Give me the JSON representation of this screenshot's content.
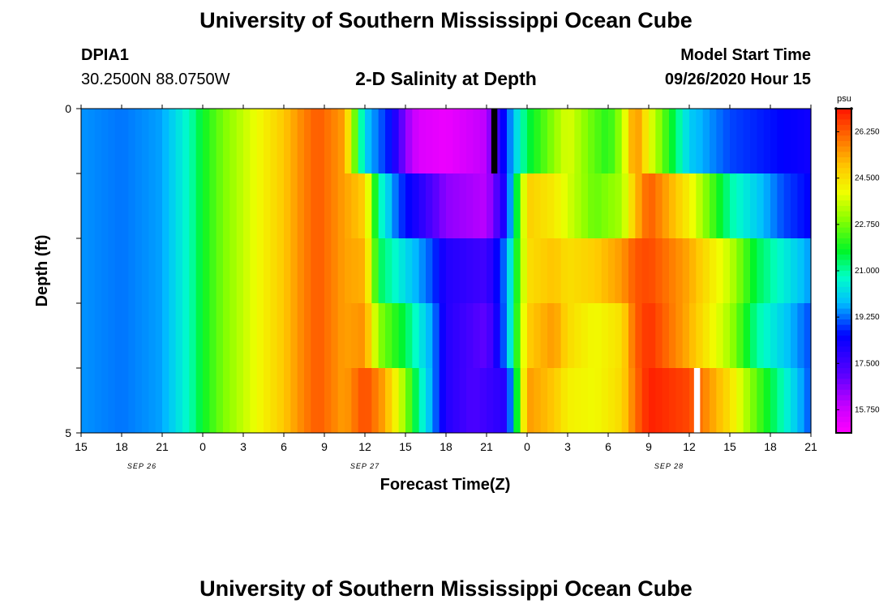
{
  "header": {
    "title": "University of Southern Mississippi Ocean Cube",
    "station_id": "DPIA1",
    "station_coords": "30.2500N 88.0750W",
    "plot_title": "2-D Salinity at Depth",
    "model_start_label": "Model Start Time",
    "model_start_value": "09/26/2020 Hour 15"
  },
  "footer": {
    "title": "University of Southern Mississippi Ocean Cube"
  },
  "chart_data": {
    "type": "heatmap",
    "title": "2-D Salinity at Depth",
    "xlabel": "Forecast Time(Z)",
    "ylabel": "Depth (ft)",
    "ylim": [
      0,
      5
    ],
    "y_tick_labels": [
      "0",
      "5"
    ],
    "y_tick_count": 6,
    "x_tick_labels": [
      "15",
      "18",
      "21",
      "0",
      "3",
      "6",
      "9",
      "12",
      "15",
      "18",
      "21",
      "0",
      "3",
      "6",
      "9",
      "12",
      "15",
      "18",
      "21"
    ],
    "date_labels": [
      {
        "text": "SEP 26",
        "tick_index": 1.5
      },
      {
        "text": "SEP 27",
        "tick_index": 7
      },
      {
        "text": "SEP 28",
        "tick_index": 14.5
      }
    ],
    "x_range_hours": [
      0,
      54
    ],
    "depth_rows": 5,
    "colorbar": {
      "unit": "psu",
      "min": 14.875,
      "max": 27.125,
      "tick_values": [
        26.25,
        24.5,
        22.75,
        21.0,
        19.25,
        17.5,
        15.75
      ],
      "tick_labels": [
        "26.250",
        "24.500",
        "22.750",
        "21.000",
        "19.250",
        "17.500",
        "15.750"
      ]
    },
    "salinity_keyframes": [
      {
        "depth_row": 0,
        "hours": [
          0,
          3,
          6,
          8,
          9,
          10.5,
          12,
          15,
          16.5,
          17.5,
          19.5,
          21,
          23,
          24,
          25,
          27,
          30,
          31.5,
          33,
          35,
          36,
          37.5,
          39,
          40,
          41,
          42,
          45,
          48,
          54
        ],
        "values": [
          19.5,
          19.3,
          19.6,
          20.8,
          21.8,
          22.8,
          23.5,
          24.9,
          25.8,
          26.3,
          25.4,
          20.0,
          18.5,
          16.5,
          15.5,
          15.2,
          16.0,
          19.0,
          21.5,
          23.0,
          23.8,
          22.8,
          22.0,
          23.2,
          25.8,
          24.0,
          20.0,
          19.0,
          18.3
        ]
      },
      {
        "depth_row": 1,
        "hours": [
          0,
          3,
          6,
          8,
          9,
          10.5,
          12,
          15,
          16.5,
          17.5,
          19.5,
          21,
          22,
          23.5,
          25,
          27,
          30,
          31.5,
          33,
          35,
          36,
          38,
          40,
          41,
          42,
          45,
          48,
          50,
          52,
          54
        ],
        "values": [
          19.5,
          19.3,
          19.6,
          20.8,
          21.8,
          22.8,
          23.5,
          24.9,
          25.8,
          26.3,
          25.4,
          24.8,
          21.0,
          19.0,
          18.0,
          16.5,
          16.0,
          18.5,
          24.8,
          24.3,
          23.7,
          22.6,
          23.2,
          25.0,
          26.3,
          24.2,
          21.0,
          20.0,
          19.0,
          18.5
        ]
      },
      {
        "depth_row": 2,
        "hours": [
          0,
          3,
          6,
          8,
          9,
          10.5,
          12,
          15,
          16.5,
          17.5,
          19.5,
          21,
          22,
          24,
          26,
          27,
          30,
          31.5,
          33,
          35,
          36,
          38,
          40,
          41,
          42,
          45,
          48,
          50,
          54
        ],
        "values": [
          19.5,
          19.3,
          19.6,
          20.8,
          21.8,
          22.8,
          23.5,
          24.9,
          25.8,
          26.3,
          25.4,
          25.2,
          21.5,
          20.2,
          19.0,
          18.0,
          17.5,
          19.5,
          24.5,
          25.0,
          24.5,
          24.8,
          25.5,
          26.3,
          26.5,
          25.3,
          23.5,
          21.5,
          19.5
        ]
      },
      {
        "depth_row": 3,
        "hours": [
          0,
          3,
          6,
          8,
          9,
          10.5,
          12,
          15,
          16.5,
          17.5,
          19.5,
          21,
          22,
          24,
          26,
          27,
          30,
          31.5,
          33,
          35,
          36,
          38,
          40,
          41,
          42,
          45,
          48,
          50,
          52,
          54
        ],
        "values": [
          19.5,
          19.3,
          19.6,
          20.8,
          21.8,
          22.8,
          23.5,
          24.9,
          25.8,
          26.3,
          25.4,
          25.6,
          23.0,
          21.5,
          19.5,
          18.0,
          17.0,
          19.5,
          24.8,
          25.5,
          24.6,
          24.0,
          24.5,
          26.2,
          26.8,
          25.2,
          23.2,
          21.0,
          20.0,
          19.0
        ]
      },
      {
        "depth_row": 4,
        "hours": [
          0,
          3,
          6,
          8,
          9,
          10.5,
          12,
          15,
          16.5,
          17.5,
          19.5,
          21,
          22.5,
          24,
          25,
          26,
          27,
          29,
          31.5,
          33,
          35,
          36,
          38,
          40,
          41,
          42,
          45,
          48,
          50,
          54
        ],
        "values": [
          19.5,
          19.3,
          19.6,
          20.8,
          21.8,
          22.8,
          23.5,
          24.9,
          25.8,
          26.3,
          25.4,
          26.5,
          25.3,
          23.0,
          21.0,
          19.5,
          18.0,
          17.3,
          18.0,
          25.5,
          24.9,
          24.2,
          24.0,
          24.6,
          26.0,
          27.0,
          26.5,
          24.5,
          22.5,
          19.0
        ]
      }
    ],
    "column_hour_width": 0.5,
    "markers": [
      {
        "name": "top-black-bar",
        "color": "#000000",
        "hour": 30.35,
        "width_hours": 0.45,
        "depth_from": 0,
        "depth_to": 1
      },
      {
        "name": "bottom-white-bar",
        "color": "#ffffff",
        "hour": 45.35,
        "width_hours": 0.45,
        "depth_from": 4,
        "depth_to": 5
      }
    ]
  }
}
